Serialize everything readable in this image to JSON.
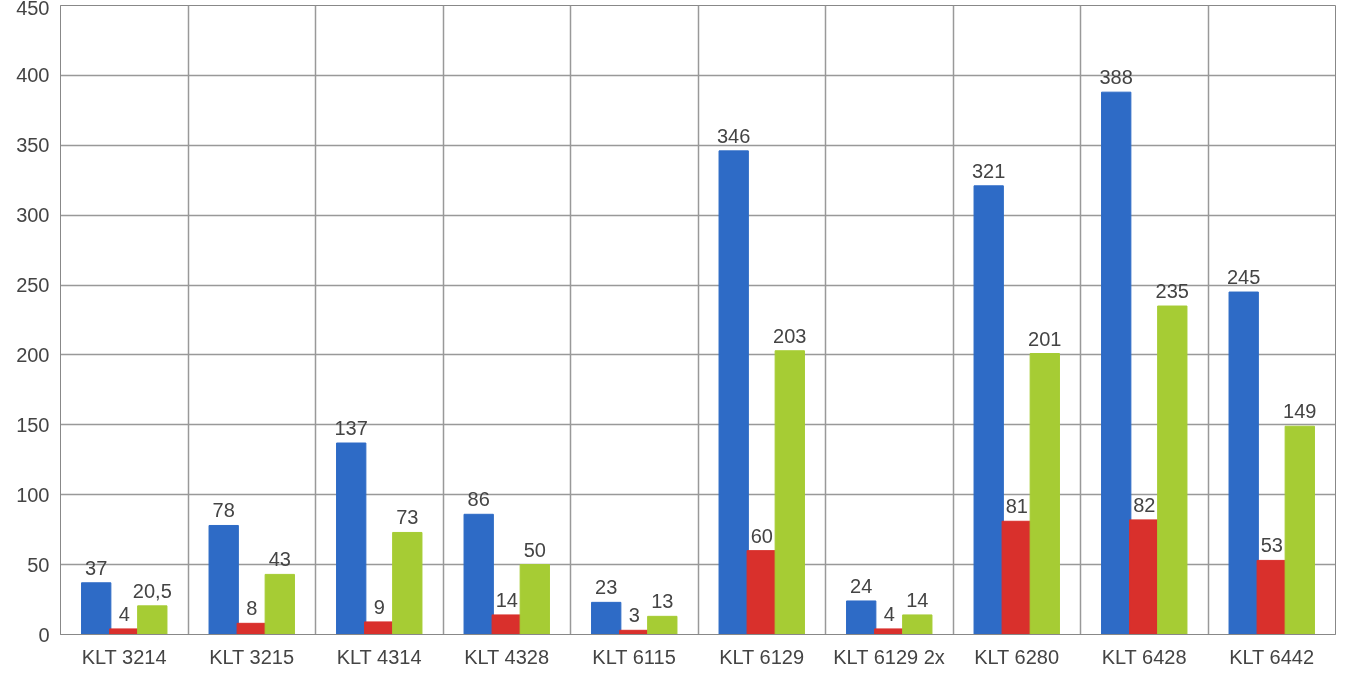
{
  "chart_data": {
    "type": "bar",
    "categories": [
      "KLT 3214",
      "KLT 3215",
      "KLT 4314",
      "KLT 4328",
      "KLT 6115",
      "KLT 6129",
      "KLT 6129 2x",
      "KLT 6280",
      "KLT 6428",
      "KLT 6442"
    ],
    "series": [
      {
        "color": "#2e6bc6",
        "values": [
          37,
          78,
          137,
          86,
          23,
          346,
          24,
          321,
          388,
          245
        ],
        "value_labels": [
          "37",
          "78",
          "137",
          "86",
          "23",
          "346",
          "24",
          "321",
          "388",
          "245"
        ]
      },
      {
        "color": "#d9302c",
        "values": [
          4,
          8,
          9,
          14,
          3,
          60,
          4,
          81,
          82,
          53
        ],
        "value_labels": [
          "4",
          "8",
          "9",
          "14",
          "3",
          "60",
          "4",
          "81",
          "82",
          "53"
        ]
      },
      {
        "color": "#a6cc34",
        "values": [
          20.5,
          43,
          73,
          50,
          13,
          203,
          14,
          201,
          235,
          149
        ],
        "value_labels": [
          "20,5",
          "43",
          "73",
          "50",
          "13",
          "203",
          "14",
          "201",
          "235",
          "149"
        ]
      }
    ],
    "ylim": [
      0,
      450
    ],
    "yticks": [
      0,
      50,
      100,
      150,
      200,
      250,
      300,
      350,
      400,
      450
    ],
    "grid": true
  }
}
